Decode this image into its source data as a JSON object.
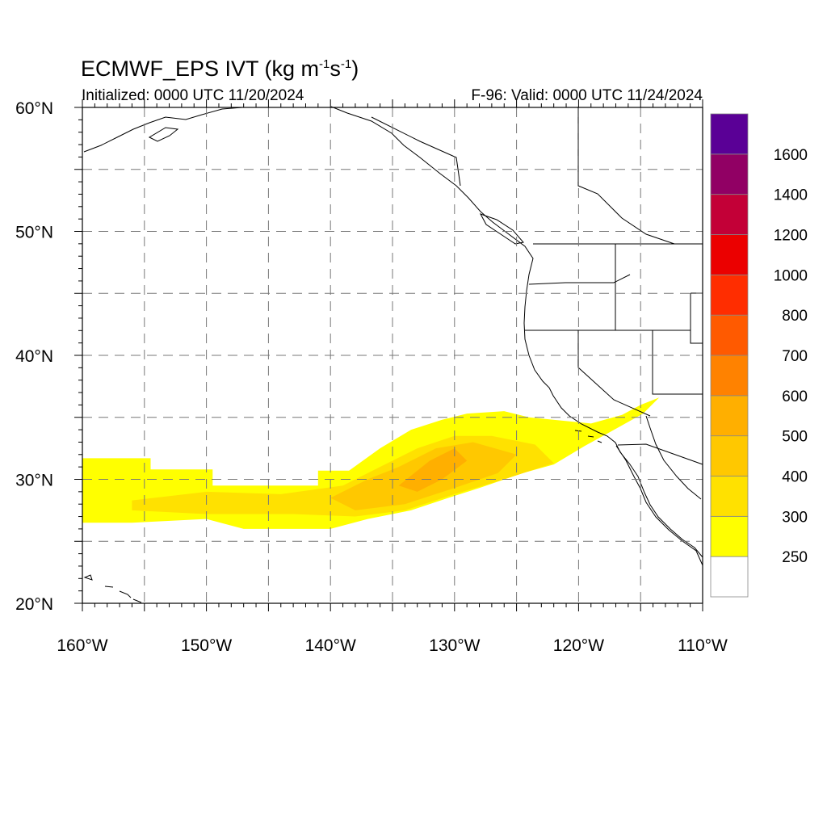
{
  "title": {
    "main": "ECMWF_EPS IVT (kg m",
    "sup1": "-1",
    "mid": "s",
    "sup2": "-1",
    "end": ")"
  },
  "init_label": "Initialized: 0000 UTC 11/20/2024",
  "valid_label": "F-96: Valid: 0000 UTC 11/24/2024",
  "lat_labels": [
    "60°N",
    "50°N",
    "40°N",
    "30°N",
    "20°N"
  ],
  "lon_labels": [
    "160°W",
    "150°W",
    "140°W",
    "130°W",
    "120°W",
    "110°W"
  ],
  "colorbar": {
    "colors": [
      "#ffffff",
      "#ffff00",
      "#ffe100",
      "#ffc800",
      "#ffaf00",
      "#ff8200",
      "#ff5a00",
      "#ff2d00",
      "#eb0000",
      "#c30037",
      "#910064",
      "#5a0096"
    ],
    "labels": [
      "250",
      "300",
      "400",
      "500",
      "600",
      "700",
      "800",
      "1000",
      "1200",
      "1400",
      "1600"
    ]
  },
  "chart_data": {
    "type": "heatmap",
    "variable": "IVT",
    "domain": {
      "lon": [
        -160,
        -110
      ],
      "lat": [
        20,
        60
      ]
    },
    "grid_spacing_deg": [
      5,
      5
    ],
    "plume": [
      {
        "lon": -159,
        "lat": 29.5,
        "ivt": 260
      },
      {
        "lon": -152,
        "lat": 28.5,
        "ivt": 320
      },
      {
        "lon": -145,
        "lat": 28,
        "ivt": 330
      },
      {
        "lon": -138,
        "lat": 28.5,
        "ivt": 380
      },
      {
        "lon": -133,
        "lat": 30,
        "ivt": 420
      },
      {
        "lon": -131,
        "lat": 31,
        "ivt": 450
      },
      {
        "lon": -127,
        "lat": 31.5,
        "ivt": 400
      },
      {
        "lon": -123,
        "lat": 33.5,
        "ivt": 320
      },
      {
        "lon": -117,
        "lat": 35,
        "ivt": 280
      }
    ]
  }
}
